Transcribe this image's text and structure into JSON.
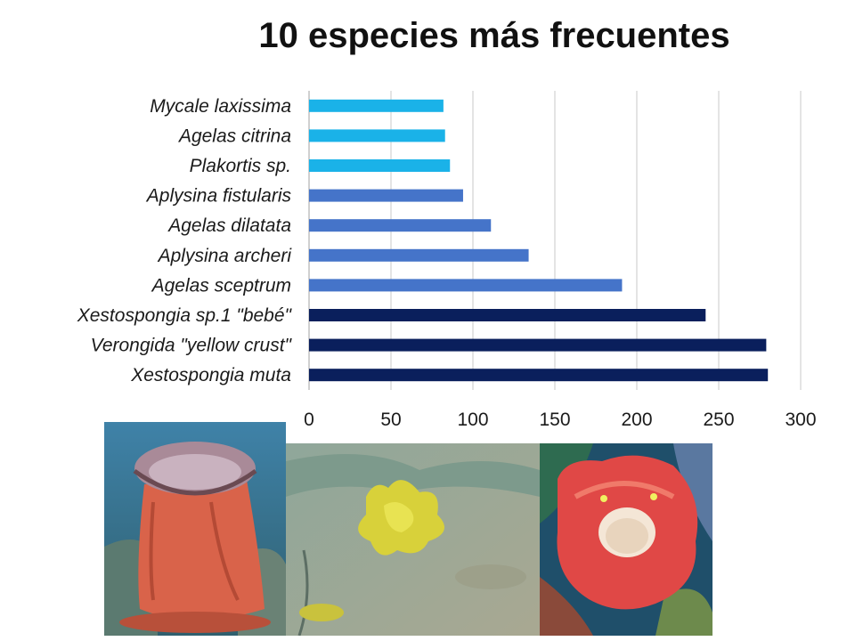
{
  "chart_data": {
    "type": "bar",
    "orientation": "horizontal",
    "title": "10 especies más frecuentes",
    "xlabel": "",
    "ylabel": "",
    "xlim": [
      0,
      300
    ],
    "ticks": [
      "0",
      "50",
      "100",
      "150",
      "200",
      "250",
      "300"
    ],
    "tick_values": [
      0,
      50,
      100,
      150,
      200,
      250,
      300
    ],
    "grid": "vertical",
    "categories": [
      "Mycale laxissima",
      "Agelas citrina",
      "Plakortis sp.",
      "Aplysina fistularis",
      "Agelas dilatata",
      "Aplysina archeri",
      "Agelas sceptrum",
      "Xestospongia sp.1 \"bebé\"",
      "Verongida \"yellow crust\"",
      "Xestospongia muta"
    ],
    "values": [
      82,
      83,
      86,
      94,
      111,
      134,
      191,
      242,
      279,
      280
    ],
    "bar_colors": [
      "#1ab2e8",
      "#1ab2e8",
      "#1ab2e8",
      "#4574c9",
      "#4574c9",
      "#4574c9",
      "#4574c9",
      "#0a1f5c",
      "#0a1f5c",
      "#0a1f5c"
    ]
  },
  "photos": [
    {
      "icon": "barrel-sponge-photo"
    },
    {
      "icon": "yellow-crust-sponge-photo"
    },
    {
      "icon": "red-sponge-photo"
    }
  ]
}
